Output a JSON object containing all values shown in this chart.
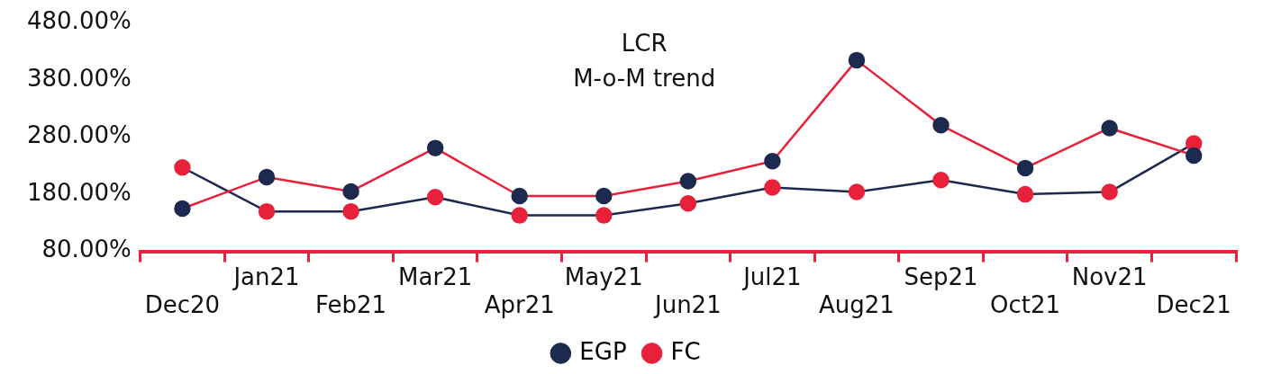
{
  "chart_data": {
    "type": "line",
    "title": "LCR",
    "subtitle": "M-o-M trend",
    "categories": [
      "Dec20",
      "Jan21",
      "Feb21",
      "Mar21",
      "Apr21",
      "May21",
      "Jun21",
      "Jul21",
      "Aug21",
      "Sep21",
      "Oct21",
      "Nov21",
      "Dec21"
    ],
    "series": [
      {
        "name": "EGP",
        "color": "#e8213b",
        "values": [
          155,
          210,
          185,
          261,
          177,
          177,
          203,
          238,
          415,
          301,
          226,
          296,
          248
        ]
      },
      {
        "name": "FC",
        "color": "#1b2a4e",
        "values": [
          227,
          150,
          150,
          175,
          143,
          143,
          164,
          192,
          184,
          205,
          180,
          184,
          269
        ]
      }
    ],
    "ylim": [
      80,
      480
    ],
    "yticks": [
      {
        "value": 80,
        "label": "80.00%"
      },
      {
        "value": 180,
        "label": "180.00%"
      },
      {
        "value": 280,
        "label": "280.00%"
      },
      {
        "value": 380,
        "label": "380.00%"
      },
      {
        "value": 480,
        "label": "480.00%"
      }
    ],
    "grid": false,
    "legend": "bottom",
    "marker": "circle",
    "line_style": "solid"
  }
}
